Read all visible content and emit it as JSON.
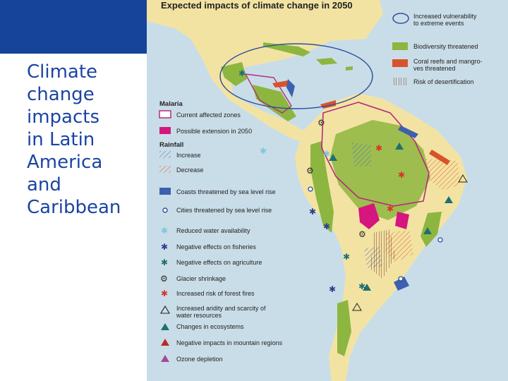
{
  "slide": {
    "title": "Climate\nchange\nimpacts\nin Latin\nAmerica\nand\nCaribbean",
    "accent_color": "#16449a",
    "title_color": "#1b44a3"
  },
  "map": {
    "heading": "Expected impacts of climate change in 2050",
    "colors": {
      "land": "#f3e3a3",
      "ocean": "#c9dde8",
      "biodiversity": "#8db640",
      "coral": "#d9532a",
      "malaria_possible": "#d6157e",
      "malaria_current": "#b52c7c",
      "coast_threat": "#3d5fb0",
      "vulnerability_outline": "#2e4f9e"
    },
    "legend_top": {
      "vulnerability": "Increased vulnerability\nto extreme events",
      "biodiversity": "Biodiversity threatened",
      "coral": "Coral reefs and mangro-\nves threatened",
      "desertification": "Risk of desertification"
    },
    "malaria": {
      "heading": "Malaria",
      "current": "Current affected zones",
      "possible": "Possible extension in 2050"
    },
    "rainfall": {
      "heading": "Rainfall",
      "increase": "Increase",
      "decrease": "Decrease"
    },
    "legend_items": {
      "coasts": "Coasts threatened by sea level rise",
      "cities": "Cities threatened by sea level rise",
      "water": "Reduced water availability",
      "fisheries": "Negative effects on fisheries",
      "agriculture": "Negative effects on agriculture",
      "glacier": "Glacier shrinkage",
      "fires": "Increased risk of forest fires",
      "aridity": "Increased aridity and scarcity of\nwater resources",
      "ecosystems": "Changes in ecosystems",
      "mountain": "Negative impacts in mountain regions",
      "ozone": "Ozone depletion"
    },
    "icons": {
      "vulnerability": "ellipse-outline-icon",
      "desertification": "vertical-hatch-icon",
      "increase": "diagonal-hatch-blue-icon",
      "decrease": "diagonal-hatch-orange-icon",
      "cities": "circle-outline-icon",
      "water": "star-icon",
      "fisheries": "star-icon",
      "agriculture": "star-icon",
      "glacier": "gear-icon",
      "fires": "star-icon",
      "aridity": "triangle-outline-icon",
      "ecosystems": "triangle-icon",
      "mountain": "triangle-icon",
      "ozone": "triangle-icon"
    }
  }
}
